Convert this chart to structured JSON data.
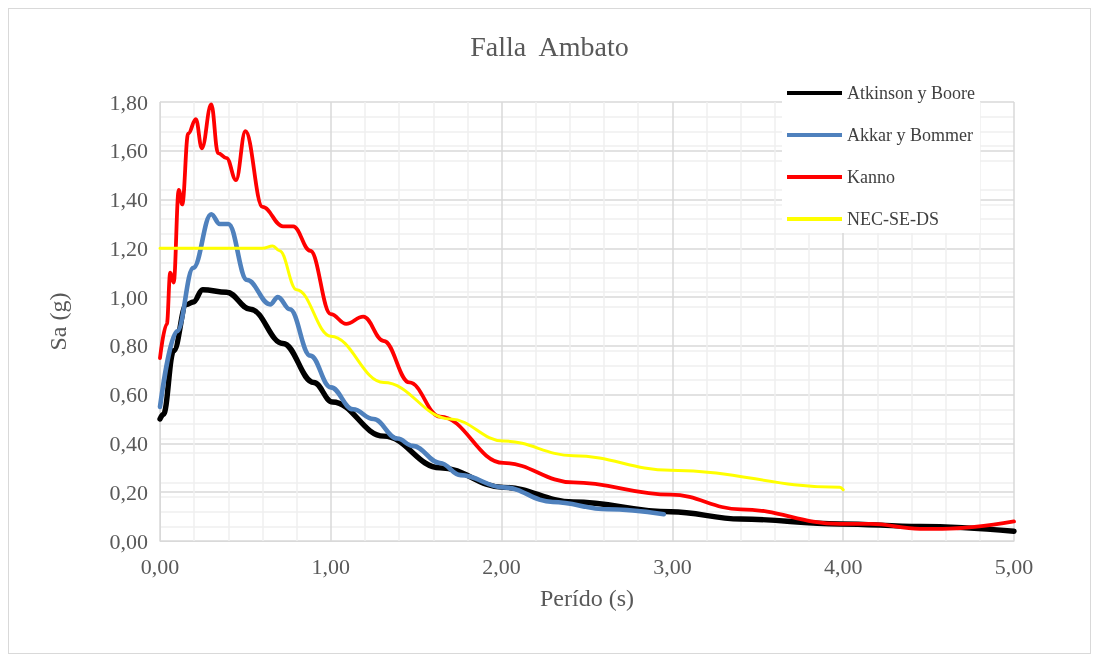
{
  "chart_data": {
    "type": "line",
    "title": "Falla  Ambato",
    "xlabel": "Perído (s)",
    "ylabel": "Sa (g)",
    "xlim": [
      0,
      5
    ],
    "xticks": [
      {
        "value": 0,
        "label": "0,00"
      },
      {
        "value": 1,
        "label": "1,00"
      },
      {
        "value": 2,
        "label": "2,00"
      },
      {
        "value": 3,
        "label": "3,00"
      },
      {
        "value": 4,
        "label": "4,00"
      },
      {
        "value": 5,
        "label": "5,00"
      }
    ],
    "ylim": [
      0,
      1.8
    ],
    "yticks": [
      {
        "value": 0,
        "label": "0,00"
      },
      {
        "value": 0.2,
        "label": "0,20"
      },
      {
        "value": 0.4,
        "label": "0,40"
      },
      {
        "value": 0.6,
        "label": "0,60"
      },
      {
        "value": 0.8,
        "label": "0,80"
      },
      {
        "value": 1,
        "label": "1,00"
      },
      {
        "value": 1.2,
        "label": "1,20"
      },
      {
        "value": 1.4,
        "label": "1,40"
      },
      {
        "value": 1.6,
        "label": "1,60"
      },
      {
        "value": 1.8,
        "label": "1,80"
      }
    ],
    "grid": true,
    "legend": "top right",
    "marker": "none",
    "line_style": "solid",
    "series": [
      {
        "name": "Atkinson y Boore",
        "color": "#000000",
        "x": [
          0,
          0.02,
          0.08,
          0.155,
          0.195,
          0.25,
          0.39,
          0.53,
          0.72,
          0.9,
          1.01,
          1.31,
          1.64,
          2.01,
          2.42,
          2.99,
          3.4,
          3.98,
          4.45,
          5
        ],
        "values": [
          0.5,
          0.52,
          0.78,
          0.97,
          0.98,
          1.03,
          1.02,
          0.95,
          0.81,
          0.65,
          0.57,
          0.43,
          0.3,
          0.22,
          0.16,
          0.12,
          0.09,
          0.07,
          0.06,
          0.04
        ]
      },
      {
        "name": "Akkar y Bommer",
        "color": "#4f81bd",
        "x": [
          0,
          0.1,
          0.195,
          0.3,
          0.35,
          0.4,
          0.51,
          0.645,
          0.69,
          0.76,
          0.88,
          1,
          1.13,
          1.25,
          1.39,
          1.48,
          1.64,
          1.76,
          2.01,
          2.3,
          2.62,
          2.95
        ],
        "values": [
          0.55,
          0.86,
          1.12,
          1.34,
          1.3,
          1.3,
          1.07,
          0.97,
          1,
          0.95,
          0.76,
          0.63,
          0.54,
          0.5,
          0.42,
          0.39,
          0.32,
          0.27,
          0.22,
          0.16,
          0.13,
          0.11
        ]
      },
      {
        "name": "Kanno",
        "color": "#ff0000",
        "x": [
          0,
          0.04,
          0.06,
          0.08,
          0.11,
          0.13,
          0.165,
          0.21,
          0.245,
          0.3,
          0.34,
          0.39,
          0.445,
          0.5,
          0.6,
          0.72,
          0.78,
          0.88,
          1,
          1.09,
          1.19,
          1.31,
          1.46,
          1.64,
          2.01,
          2.42,
          2.99,
          3.4,
          3.98,
          4.16,
          4.45,
          4.58,
          5
        ],
        "values": [
          0.75,
          0.89,
          1.1,
          1.06,
          1.44,
          1.38,
          1.67,
          1.73,
          1.61,
          1.79,
          1.59,
          1.57,
          1.48,
          1.68,
          1.37,
          1.29,
          1.29,
          1.19,
          0.93,
          0.89,
          0.92,
          0.82,
          0.65,
          0.51,
          0.32,
          0.24,
          0.19,
          0.13,
          0.07,
          0.07,
          0.05,
          0.05,
          0.08
        ]
      },
      {
        "name": "NEC-SE-DS",
        "color": "#ffff00",
        "x": [
          0,
          0.3,
          0.6,
          0.66,
          0.7,
          0.8,
          1,
          1.31,
          1.7,
          2.01,
          2.42,
          2.99,
          3.98,
          4
        ],
        "values": [
          1.2,
          1.2,
          1.2,
          1.21,
          1.19,
          1.03,
          0.84,
          0.65,
          0.5,
          0.41,
          0.35,
          0.29,
          0.22,
          0.21
        ]
      }
    ]
  }
}
